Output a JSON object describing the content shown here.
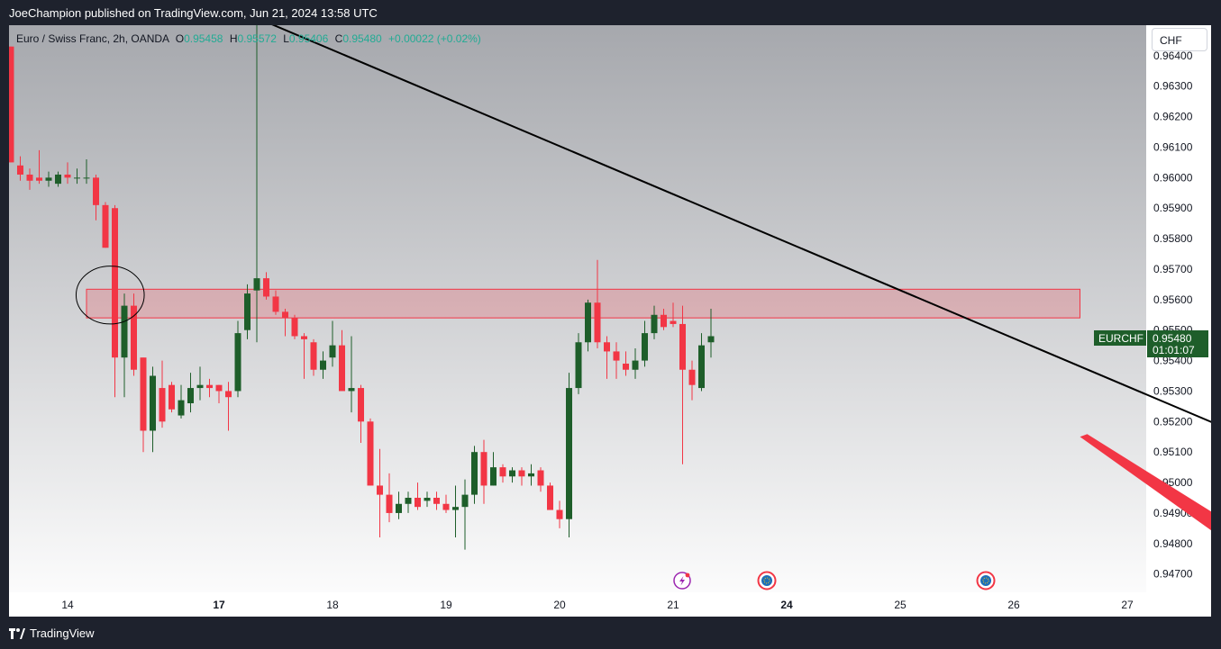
{
  "header": {
    "published_line": "JoeChampion published on TradingView.com, Jun 21, 2024 13:58 UTC"
  },
  "legend": {
    "symbol": "Euro / Swiss Franc, 2h, OANDA",
    "o_label": "O",
    "o_value": "0.95458",
    "h_label": "H",
    "h_value": "0.95572",
    "l_label": "L",
    "l_value": "0.95406",
    "c_label": "C",
    "c_value": "0.95480",
    "change": "+0.00022 (+0.02%)"
  },
  "currency_button": "CHF",
  "price_tag": {
    "symbol": "EURCHF",
    "price": "0.95480",
    "countdown": "01:01:07"
  },
  "footer": {
    "brand": "TradingView"
  },
  "colors": {
    "up": "#22ab94",
    "down": "#f23645",
    "candle_up": "#1e5e2a",
    "candle_down": "#f23645"
  },
  "chart_data": {
    "type": "candlestick",
    "ylim": [
      0.9464,
      0.965
    ],
    "y_ticks": [
      "0.96400",
      "0.96300",
      "0.96200",
      "0.96100",
      "0.96000",
      "0.95900",
      "0.95800",
      "0.95700",
      "0.95600",
      "0.95500",
      "0.95400",
      "0.95300",
      "0.95200",
      "0.95100",
      "0.95000",
      "0.94900",
      "0.94800",
      "0.94700"
    ],
    "x_ticks": [
      {
        "label": "14",
        "bold": false,
        "bar": 6
      },
      {
        "label": "17",
        "bold": true,
        "bar": 22
      },
      {
        "label": "18",
        "bold": false,
        "bar": 34
      },
      {
        "label": "19",
        "bold": false,
        "bar": 46
      },
      {
        "label": "20",
        "bold": false,
        "bar": 58
      },
      {
        "label": "21",
        "bold": false,
        "bar": 70
      },
      {
        "label": "24",
        "bold": true,
        "bar": 82
      },
      {
        "label": "25",
        "bold": false,
        "bar": 94
      },
      {
        "label": "26",
        "bold": false,
        "bar": 106
      },
      {
        "label": "27",
        "bold": false,
        "bar": 118
      }
    ],
    "candles": [
      [
        0.9643,
        0.9643,
        0.9605,
        0.9605
      ],
      [
        0.9604,
        0.9607,
        0.9599,
        0.9601
      ],
      [
        0.9601,
        0.9603,
        0.9596,
        0.9599
      ],
      [
        0.96,
        0.9609,
        0.9598,
        0.9599
      ],
      [
        0.9599,
        0.9602,
        0.9597,
        0.96
      ],
      [
        0.9598,
        0.9602,
        0.9597,
        0.9601
      ],
      [
        0.9601,
        0.9605,
        0.9598,
        0.96
      ],
      [
        0.96,
        0.9603,
        0.9598,
        0.96
      ],
      [
        0.96,
        0.9606,
        0.9598,
        0.96
      ],
      [
        0.96,
        0.9601,
        0.9586,
        0.9591
      ],
      [
        0.9591,
        0.9592,
        0.9577,
        0.9577
      ],
      [
        0.959,
        0.9591,
        0.9528,
        0.9541
      ],
      [
        0.9541,
        0.9562,
        0.9528,
        0.9558
      ],
      [
        0.9558,
        0.9562,
        0.9535,
        0.9537
      ],
      [
        0.9541,
        0.9541,
        0.951,
        0.9517
      ],
      [
        0.9517,
        0.9538,
        0.951,
        0.9535
      ],
      [
        0.9531,
        0.954,
        0.9518,
        0.952
      ],
      [
        0.9532,
        0.9533,
        0.9523,
        0.9524
      ],
      [
        0.9522,
        0.9532,
        0.9521,
        0.9527
      ],
      [
        0.9526,
        0.9536,
        0.9523,
        0.9531
      ],
      [
        0.9531,
        0.9538,
        0.9527,
        0.9532
      ],
      [
        0.9532,
        0.9534,
        0.9528,
        0.9531
      ],
      [
        0.9532,
        0.9532,
        0.9526,
        0.953
      ],
      [
        0.953,
        0.9533,
        0.9517,
        0.9528
      ],
      [
        0.953,
        0.9553,
        0.9528,
        0.9549
      ],
      [
        0.955,
        0.9565,
        0.9547,
        0.9562
      ],
      [
        0.9563,
        0.9666,
        0.9546,
        0.9567
      ],
      [
        0.9567,
        0.9569,
        0.956,
        0.9561
      ],
      [
        0.9561,
        0.9563,
        0.9555,
        0.9556
      ],
      [
        0.9556,
        0.9557,
        0.9548,
        0.9554
      ],
      [
        0.9554,
        0.9555,
        0.9547,
        0.9548
      ],
      [
        0.9548,
        0.9549,
        0.9534,
        0.9547
      ],
      [
        0.9546,
        0.9547,
        0.9535,
        0.9537
      ],
      [
        0.9537,
        0.9543,
        0.9534,
        0.954
      ],
      [
        0.9541,
        0.9553,
        0.9538,
        0.9545
      ],
      [
        0.9545,
        0.955,
        0.9531,
        0.953
      ],
      [
        0.953,
        0.9548,
        0.9523,
        0.9531
      ],
      [
        0.9531,
        0.9532,
        0.9513,
        0.952
      ],
      [
        0.952,
        0.9521,
        0.9499,
        0.9499
      ],
      [
        0.9499,
        0.9511,
        0.9482,
        0.9496
      ],
      [
        0.9496,
        0.9503,
        0.9487,
        0.949
      ],
      [
        0.949,
        0.9497,
        0.9488,
        0.9493
      ],
      [
        0.9493,
        0.9497,
        0.949,
        0.9495
      ],
      [
        0.9495,
        0.95,
        0.9491,
        0.9492
      ],
      [
        0.9494,
        0.9497,
        0.9492,
        0.9495
      ],
      [
        0.9495,
        0.9497,
        0.9491,
        0.9493
      ],
      [
        0.9493,
        0.9496,
        0.949,
        0.9491
      ],
      [
        0.9491,
        0.9499,
        0.9482,
        0.9492
      ],
      [
        0.9492,
        0.9501,
        0.9478,
        0.9496
      ],
      [
        0.9496,
        0.9512,
        0.9493,
        0.951
      ],
      [
        0.951,
        0.9514,
        0.9493,
        0.9499
      ],
      [
        0.9499,
        0.951,
        0.9499,
        0.9505
      ],
      [
        0.9505,
        0.9506,
        0.95,
        0.9502
      ],
      [
        0.9502,
        0.9505,
        0.95,
        0.9504
      ],
      [
        0.9504,
        0.9505,
        0.9499,
        0.9502
      ],
      [
        0.9502,
        0.9506,
        0.9499,
        0.9503
      ],
      [
        0.9504,
        0.9505,
        0.9497,
        0.9499
      ],
      [
        0.9499,
        0.95,
        0.9491,
        0.9491
      ],
      [
        0.9491,
        0.9494,
        0.9485,
        0.9488
      ],
      [
        0.9488,
        0.9536,
        0.9482,
        0.9531
      ],
      [
        0.9531,
        0.9549,
        0.9529,
        0.9546
      ],
      [
        0.9546,
        0.956,
        0.9543,
        0.9559
      ],
      [
        0.9559,
        0.9573,
        0.9544,
        0.9546
      ],
      [
        0.9546,
        0.9548,
        0.9534,
        0.9543
      ],
      [
        0.9543,
        0.9546,
        0.9534,
        0.954
      ],
      [
        0.9539,
        0.9543,
        0.9535,
        0.9537
      ],
      [
        0.9537,
        0.9544,
        0.9534,
        0.954
      ],
      [
        0.954,
        0.9553,
        0.9538,
        0.9549
      ],
      [
        0.9549,
        0.9558,
        0.9547,
        0.9555
      ],
      [
        0.9555,
        0.9557,
        0.955,
        0.9551
      ],
      [
        0.9553,
        0.9559,
        0.9551,
        0.9552
      ],
      [
        0.9552,
        0.9558,
        0.9506,
        0.9537
      ],
      [
        0.9537,
        0.954,
        0.9527,
        0.9532
      ],
      [
        0.9531,
        0.9549,
        0.953,
        0.9545
      ],
      [
        0.9546,
        0.9557,
        0.9541,
        0.9548
      ]
    ],
    "zone": {
      "from_bar": 8,
      "to_bar": 113,
      "price_top": 0.95634,
      "price_bottom": 0.9554
    },
    "trendline": {
      "start": {
        "bar": 24,
        "price": 0.9655
      },
      "end": {
        "bar": 142,
        "price": 0.95
      }
    },
    "ellipse": {
      "center_bar": 10.5,
      "center_price": 0.95615,
      "rx_bars": 3.6,
      "ry_price": 0.00095
    },
    "arrow": {
      "from_bar": 113,
      "from_price": 0.9515,
      "to_bar": 134,
      "to_price": 0.947
    }
  }
}
